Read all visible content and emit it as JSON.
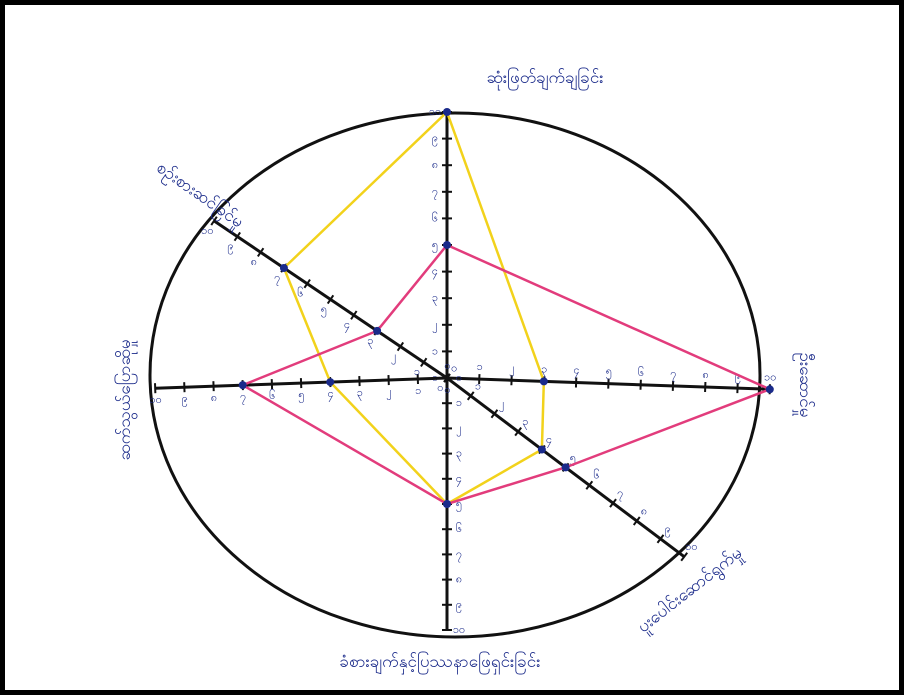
{
  "chart_data": {
    "type": "radar",
    "categories": [
      "ဆုံးဖြတ်ချက်ချခြင်း",
      "ဦးဆောင်မှု",
      "ပူးပေါင်းဆောင်ရွက်မှု",
      "ခံစားချက်နှင့်ပြဿနာဖြေရှင်းခြင်း",
      "ဆက်သွယ်ပြောဆိုမှု",
      "စဉ်းစားဆင်ခြင်မှု"
    ],
    "series": [
      {
        "color": "#f2d21b",
        "values": [
          10,
          3,
          4,
          5,
          4,
          7
        ]
      },
      {
        "color": "#e23c7c",
        "values": [
          5,
          10,
          5,
          5,
          7,
          3
        ]
      }
    ],
    "ylim": [
      0,
      10
    ],
    "yticks": [
      {
        "value": 0,
        "label": "၀"
      },
      {
        "value": 1,
        "label": "၁"
      },
      {
        "value": 2,
        "label": "၂"
      },
      {
        "value": 3,
        "label": "၃"
      },
      {
        "value": 4,
        "label": "၄"
      },
      {
        "value": 5,
        "label": "၅"
      },
      {
        "value": 6,
        "label": "၆"
      },
      {
        "value": 7,
        "label": "၇"
      },
      {
        "value": 8,
        "label": "၈"
      },
      {
        "value": 9,
        "label": "၉"
      },
      {
        "value": 10,
        "label": "၁၀"
      }
    ]
  }
}
